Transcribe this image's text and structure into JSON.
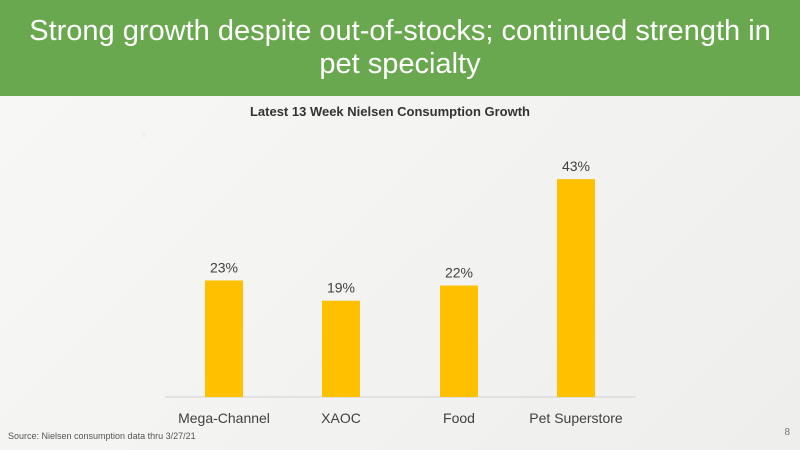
{
  "slide": {
    "title": "Strong growth despite out-of-stocks; continued strength in pet specialty",
    "source": "Source:  Nielsen consumption data thru 3/27/21",
    "page_number": "8"
  },
  "colors": {
    "header_bg": "#6aa84f",
    "bar": "#ffc000"
  },
  "chart_data": {
    "type": "bar",
    "title": "Latest 13 Week Nielsen Consumption Growth",
    "categories": [
      "Mega-Channel",
      "XAOC",
      "Food",
      "Pet Superstore"
    ],
    "values": [
      23,
      19,
      22,
      43
    ],
    "data_labels": [
      "23%",
      "19%",
      "22%",
      "43%"
    ],
    "xlabel": "",
    "ylabel": "",
    "ylim": [
      0,
      45
    ],
    "grid": false,
    "legend": "none"
  }
}
